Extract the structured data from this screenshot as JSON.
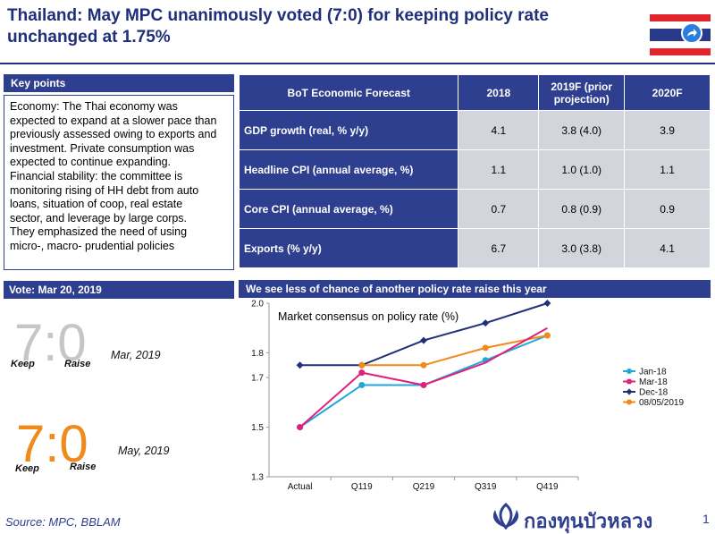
{
  "title": {
    "line1": "Thailand: May MPC unanimously voted (7:0) for keeping policy rate",
    "line2": "unchanged at 1.75%"
  },
  "key_points": {
    "header": "Key points",
    "lines": [
      "Economy: The Thai economy was",
      "expected to expand at a slower pace than",
      "previously assessed owing to exports and",
      "investment. Private consumption was",
      "expected to continue expanding.",
      "Financial stability:  the committee is",
      "monitoring rising of HH debt from auto",
      "loans, situation of coop, real estate",
      "sector, and leverage by large corps.",
      "They emphasized the need of using",
      "micro-, macro- prudential policies"
    ]
  },
  "forecast_table": {
    "headers": [
      "BoT Economic Forecast",
      "2018",
      "2019F (prior projection)",
      "2020F"
    ],
    "rows": [
      {
        "label": "GDP growth (real, % y/y)",
        "y2018": "4.1",
        "y2019": "3.8 (4.0)",
        "y2020": "3.9"
      },
      {
        "label": "Headline CPI (annual average, %)",
        "y2018": "1.1",
        "y2019": "1.0 (1.0)",
        "y2020": "1.1"
      },
      {
        "label": "Core CPI (annual average, %)",
        "y2018": "0.7",
        "y2019": "0.8 (0.9)",
        "y2020": "0.9"
      },
      {
        "label": "Exports (% y/y)",
        "y2018": "6.7",
        "y2019": "3.0 (3.8)",
        "y2020": "4.1"
      }
    ]
  },
  "vote": {
    "header": "Vote: Mar 20, 2019",
    "first": {
      "result": "7:0",
      "keep": "Keep",
      "raise": "Raise",
      "date": "Mar, 2019"
    },
    "second": {
      "result": "7:0",
      "keep": "Keep",
      "raise": "Raise",
      "date": "May, 2019"
    }
  },
  "chart_header": "We see  less of chance of another policy rate raise this year",
  "chart_data": {
    "type": "line",
    "title": "Market consensus on policy rate (%)",
    "categories": [
      "Actual",
      "Q119",
      "Q219",
      "Q319",
      "Q419"
    ],
    "ylim": [
      1.3,
      2.0
    ],
    "yticks": [
      "2.0",
      "1.8",
      "1.7",
      "1.5",
      "1.3"
    ],
    "grid": false,
    "legend_position": "right",
    "series": [
      {
        "name": "Jan-18",
        "color": "#1fa8d8",
        "marker": "circle",
        "values": [
          1.5,
          1.67,
          1.67,
          1.77,
          1.87
        ]
      },
      {
        "name": "Mar-18",
        "color": "#e0207a",
        "marker": "circle",
        "values": [
          1.5,
          1.72,
          1.67,
          null,
          null
        ]
      },
      {
        "name": "Dec-18",
        "color": "#1f2f7a",
        "marker": "diamond",
        "values": [
          1.75,
          1.75,
          1.85,
          1.92,
          2.0
        ]
      },
      {
        "name": "08/05/2019",
        "color": "#ef8a1b",
        "marker": "circle",
        "values": [
          null,
          1.75,
          1.75,
          1.82,
          1.87
        ]
      }
    ],
    "partial_series_color": "#e0207a"
  },
  "source": "Source:  MPC, BBLAM",
  "logo_text": "กองทุนบัวหลวง",
  "page_number": "1",
  "colors": {
    "navy": "#2f3f8f",
    "title": "#1f2f7a",
    "cell": "#d3d5dc",
    "orange": "#ef8a1b"
  }
}
